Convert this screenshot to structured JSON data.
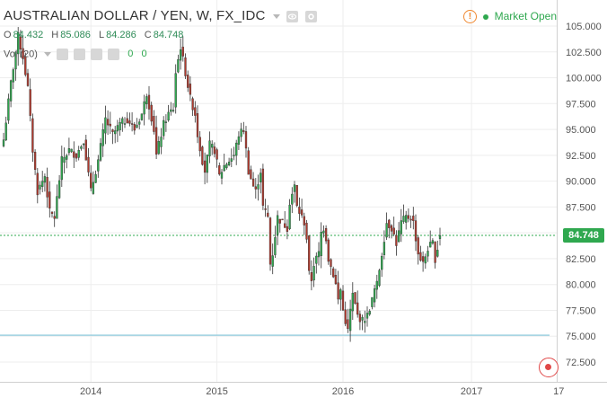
{
  "header": {
    "title": "AUSTRALIAN DOLLAR / YEN, W, FX_IDC",
    "ohlc": [
      {
        "label": "O",
        "value": "84.432"
      },
      {
        "label": "H",
        "value": "85.086"
      },
      {
        "label": "L",
        "value": "84.286"
      },
      {
        "label": "C",
        "value": "84.748"
      }
    ],
    "volume_label": "Vol (20)",
    "volume_values": [
      "0",
      "0"
    ],
    "status": "Market Open",
    "alert_icon": "!"
  },
  "colors": {
    "up": "#2fa84f",
    "down": "#b03a2e",
    "wick": "#333333",
    "grid": "#eeeeee",
    "price_line": "#2fa84f",
    "level_line": "#9dd0e0"
  },
  "chart_data": {
    "type": "candlestick",
    "ylim": [
      71.0,
      106.5
    ],
    "y_ticks": [
      105.0,
      102.5,
      100.0,
      97.5,
      95.0,
      92.5,
      90.0,
      87.5,
      85.0,
      82.5,
      80.0,
      77.5,
      75.0,
      72.5
    ],
    "y_tick_labels": [
      "105.000",
      "102.500",
      "100.000",
      "97.500",
      "95.000",
      "92.500",
      "90.000",
      "87.500",
      "85.000",
      "82.500",
      "80.000",
      "77.500",
      "75.000",
      "72.500"
    ],
    "x_ticks": [
      {
        "label": "2014",
        "week": 36
      },
      {
        "label": "2015",
        "week": 88
      },
      {
        "label": "2016",
        "week": 140
      },
      {
        "label": "2017",
        "week": 193
      },
      {
        "label": "17",
        "week": 229
      }
    ],
    "last_price": 84.748,
    "last_price_label": "84.748",
    "horizontal_level": 75.1,
    "grid": true,
    "anchors": [
      [
        0,
        94.0
      ],
      [
        3,
        99.5
      ],
      [
        6,
        104.0
      ],
      [
        8,
        102.0
      ],
      [
        10,
        99.0
      ],
      [
        12,
        93.0
      ],
      [
        14,
        89.0
      ],
      [
        17,
        90.5
      ],
      [
        19,
        87.0
      ],
      [
        21,
        86.5
      ],
      [
        24,
        92.0
      ],
      [
        27,
        93.0
      ],
      [
        30,
        92.5
      ],
      [
        33,
        94.0
      ],
      [
        36,
        89.0
      ],
      [
        39,
        92.0
      ],
      [
        42,
        96.0
      ],
      [
        45,
        94.5
      ],
      [
        48,
        95.5
      ],
      [
        51,
        96.0
      ],
      [
        54,
        95.0
      ],
      [
        57,
        96.5
      ],
      [
        59,
        98.5
      ],
      [
        62,
        95.0
      ],
      [
        63,
        92.5
      ],
      [
        66,
        95.5
      ],
      [
        68,
        96.5
      ],
      [
        70,
        97.0
      ],
      [
        71,
        100.5
      ],
      [
        73,
        103.0
      ],
      [
        75,
        100.5
      ],
      [
        77,
        98.0
      ],
      [
        79,
        96.5
      ],
      [
        80,
        94.5
      ],
      [
        82,
        92.0
      ],
      [
        83,
        91.0
      ],
      [
        85,
        93.5
      ],
      [
        87,
        93.0
      ],
      [
        89,
        90.5
      ],
      [
        91,
        91.5
      ],
      [
        93,
        92.0
      ],
      [
        95,
        92.5
      ],
      [
        97,
        94.5
      ],
      [
        99,
        95.0
      ],
      [
        101,
        91.0
      ],
      [
        103,
        89.5
      ],
      [
        104,
        89.0
      ],
      [
        106,
        91.0
      ],
      [
        107,
        87.5
      ],
      [
        109,
        86.5
      ],
      [
        110,
        82.0
      ],
      [
        111,
        83.0
      ],
      [
        113,
        86.5
      ],
      [
        115,
        86.0
      ],
      [
        117,
        85.5
      ],
      [
        118,
        88.0
      ],
      [
        120,
        89.5
      ],
      [
        121,
        87.5
      ],
      [
        122,
        87.0
      ],
      [
        124,
        86.0
      ],
      [
        125,
        84.5
      ],
      [
        126,
        81.0
      ],
      [
        127,
        80.5
      ],
      [
        128,
        82.0
      ],
      [
        130,
        83.0
      ],
      [
        131,
        85.0
      ],
      [
        132,
        85.5
      ],
      [
        133,
        84.5
      ],
      [
        134,
        82.5
      ],
      [
        136,
        81.0
      ],
      [
        137,
        80.0
      ],
      [
        138,
        78.5
      ],
      [
        139,
        79.5
      ],
      [
        140,
        77.5
      ],
      [
        141,
        76.5
      ],
      [
        142,
        75.5
      ],
      [
        143,
        77.5
      ],
      [
        144,
        79.0
      ],
      [
        146,
        77.0
      ],
      [
        148,
        76.5
      ],
      [
        150,
        77.0
      ],
      [
        152,
        78.5
      ],
      [
        153,
        79.5
      ],
      [
        154,
        80.0
      ],
      [
        156,
        83.0
      ],
      [
        158,
        86.0
      ],
      [
        160,
        85.5
      ],
      [
        162,
        84.0
      ],
      [
        164,
        86.0
      ],
      [
        166,
        86.5
      ],
      [
        168,
        86.5
      ],
      [
        169,
        86.0
      ],
      [
        170,
        84.5
      ],
      [
        171,
        83.0
      ],
      [
        173,
        82.0
      ],
      [
        175,
        83.5
      ],
      [
        177,
        84.0
      ],
      [
        178,
        82.5
      ],
      [
        179,
        83.5
      ],
      [
        180,
        84.7
      ]
    ]
  }
}
